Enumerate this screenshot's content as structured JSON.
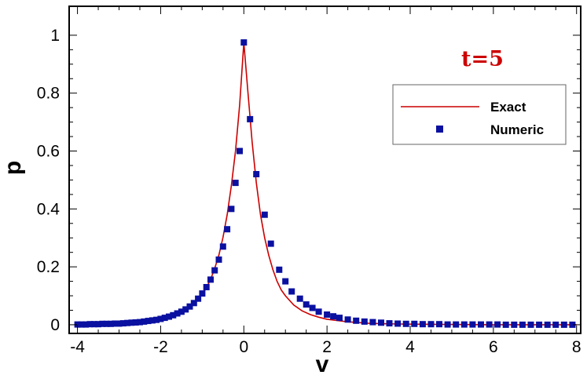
{
  "chart_data": {
    "type": "line",
    "title": "",
    "annotation": "t=5",
    "annotation_color": "#cc0000",
    "xlabel": "v",
    "ylabel": "p",
    "xlim": [
      -4.2,
      8.1
    ],
    "ylim": [
      -0.03,
      1.1
    ],
    "x_ticks": [
      -4,
      -2,
      0,
      2,
      4,
      6,
      8
    ],
    "x_tick_labels": [
      "-4",
      "-2",
      "0",
      "2",
      "4",
      "6",
      "8"
    ],
    "y_ticks": [
      0,
      0.2,
      0.4,
      0.6,
      0.8,
      1
    ],
    "y_tick_labels": [
      "0",
      "0.2",
      "0.4",
      "0.6",
      "0.8",
      "1"
    ],
    "grid": false,
    "legend_position": "top-right",
    "series": [
      {
        "name": "Exact",
        "kind": "line",
        "color": "#cc0000",
        "x": [
          -4.0,
          -3.5,
          -3.0,
          -2.5,
          -2.0,
          -1.8,
          -1.6,
          -1.4,
          -1.2,
          -1.0,
          -0.9,
          -0.8,
          -0.7,
          -0.6,
          -0.5,
          -0.4,
          -0.3,
          -0.2,
          -0.1,
          0.0,
          0.1,
          0.2,
          0.3,
          0.4,
          0.5,
          0.6,
          0.7,
          0.8,
          0.9,
          1.0,
          1.2,
          1.4,
          1.6,
          1.8,
          2.0,
          2.5,
          3.0,
          3.5,
          4.0,
          5.0,
          6.0,
          7.0,
          8.0
        ],
        "y": [
          0.001,
          0.002,
          0.003,
          0.005,
          0.018,
          0.025,
          0.036,
          0.05,
          0.072,
          0.105,
          0.128,
          0.157,
          0.194,
          0.24,
          0.302,
          0.38,
          0.48,
          0.6,
          0.76,
          0.975,
          0.8,
          0.63,
          0.49,
          0.38,
          0.3,
          0.24,
          0.19,
          0.15,
          0.12,
          0.1,
          0.068,
          0.048,
          0.035,
          0.026,
          0.019,
          0.01,
          0.005,
          0.003,
          0.002,
          0.001,
          0.0,
          0.0,
          0.0
        ]
      },
      {
        "name": "Numeric",
        "kind": "scatter",
        "color": "#0a10a0",
        "x": [
          -4.0,
          -3.9,
          -3.8,
          -3.7,
          -3.6,
          -3.5,
          -3.4,
          -3.3,
          -3.2,
          -3.1,
          -3.0,
          -2.9,
          -2.8,
          -2.7,
          -2.6,
          -2.5,
          -2.4,
          -2.3,
          -2.2,
          -2.1,
          -2.0,
          -1.9,
          -1.8,
          -1.7,
          -1.6,
          -1.5,
          -1.4,
          -1.3,
          -1.2,
          -1.1,
          -1.0,
          -0.9,
          -0.8,
          -0.7,
          -0.6,
          -0.5,
          -0.4,
          -0.3,
          -0.2,
          -0.1,
          0.0,
          0.15,
          0.3,
          0.5,
          0.65,
          0.85,
          1.0,
          1.15,
          1.35,
          1.5,
          1.65,
          1.8,
          2.0,
          2.15,
          2.3,
          2.5,
          2.7,
          2.9,
          3.1,
          3.3,
          3.5,
          3.7,
          3.9,
          4.1,
          4.3,
          4.5,
          4.7,
          4.9,
          5.1,
          5.3,
          5.5,
          5.7,
          5.9,
          6.1,
          6.3,
          6.5,
          6.7,
          6.9,
          7.1,
          7.3,
          7.5,
          7.7,
          7.9
        ],
        "y": [
          0.001,
          0.001,
          0.001,
          0.002,
          0.002,
          0.002,
          0.003,
          0.003,
          0.003,
          0.004,
          0.004,
          0.005,
          0.006,
          0.007,
          0.008,
          0.009,
          0.011,
          0.013,
          0.015,
          0.017,
          0.02,
          0.024,
          0.028,
          0.033,
          0.039,
          0.045,
          0.053,
          0.063,
          0.075,
          0.09,
          0.108,
          0.13,
          0.156,
          0.188,
          0.225,
          0.27,
          0.33,
          0.4,
          0.49,
          0.6,
          0.975,
          0.71,
          0.52,
          0.38,
          0.28,
          0.19,
          0.15,
          0.115,
          0.09,
          0.07,
          0.058,
          0.045,
          0.035,
          0.029,
          0.024,
          0.018,
          0.014,
          0.011,
          0.009,
          0.007,
          0.005,
          0.004,
          0.003,
          0.003,
          0.002,
          0.002,
          0.002,
          0.001,
          0.001,
          0.001,
          0.001,
          0.001,
          0.001,
          0.001,
          0.0,
          0.0,
          0.0,
          0.0,
          0.0,
          0.0,
          0.0,
          0.0,
          0.0
        ]
      }
    ]
  }
}
